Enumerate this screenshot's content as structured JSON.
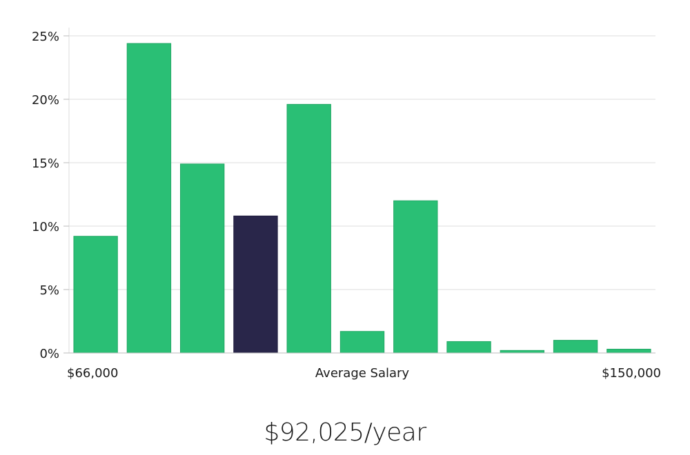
{
  "chart_data": {
    "type": "bar",
    "xlabel": "Average Salary",
    "x_range_labels": [
      "$66,000",
      "$150,000"
    ],
    "y_unit": "%",
    "ylim": [
      0,
      25
    ],
    "yticks": [
      "0%",
      "5%",
      "10%",
      "15%",
      "20%",
      "25%"
    ],
    "ytick_values": [
      0,
      5,
      10,
      15,
      20,
      25
    ],
    "grid": true,
    "values": [
      9.2,
      24.4,
      14.9,
      10.8,
      19.6,
      1.7,
      12.0,
      0.9,
      0.2,
      1.0,
      0.3
    ],
    "highlight_index": 3,
    "colors": {
      "bar": "#2abf75",
      "highlight": "#29264a",
      "grid": "#dddddd",
      "axis": "#bbbbbb"
    }
  },
  "summary": {
    "salary_text": "$92,025/year"
  }
}
